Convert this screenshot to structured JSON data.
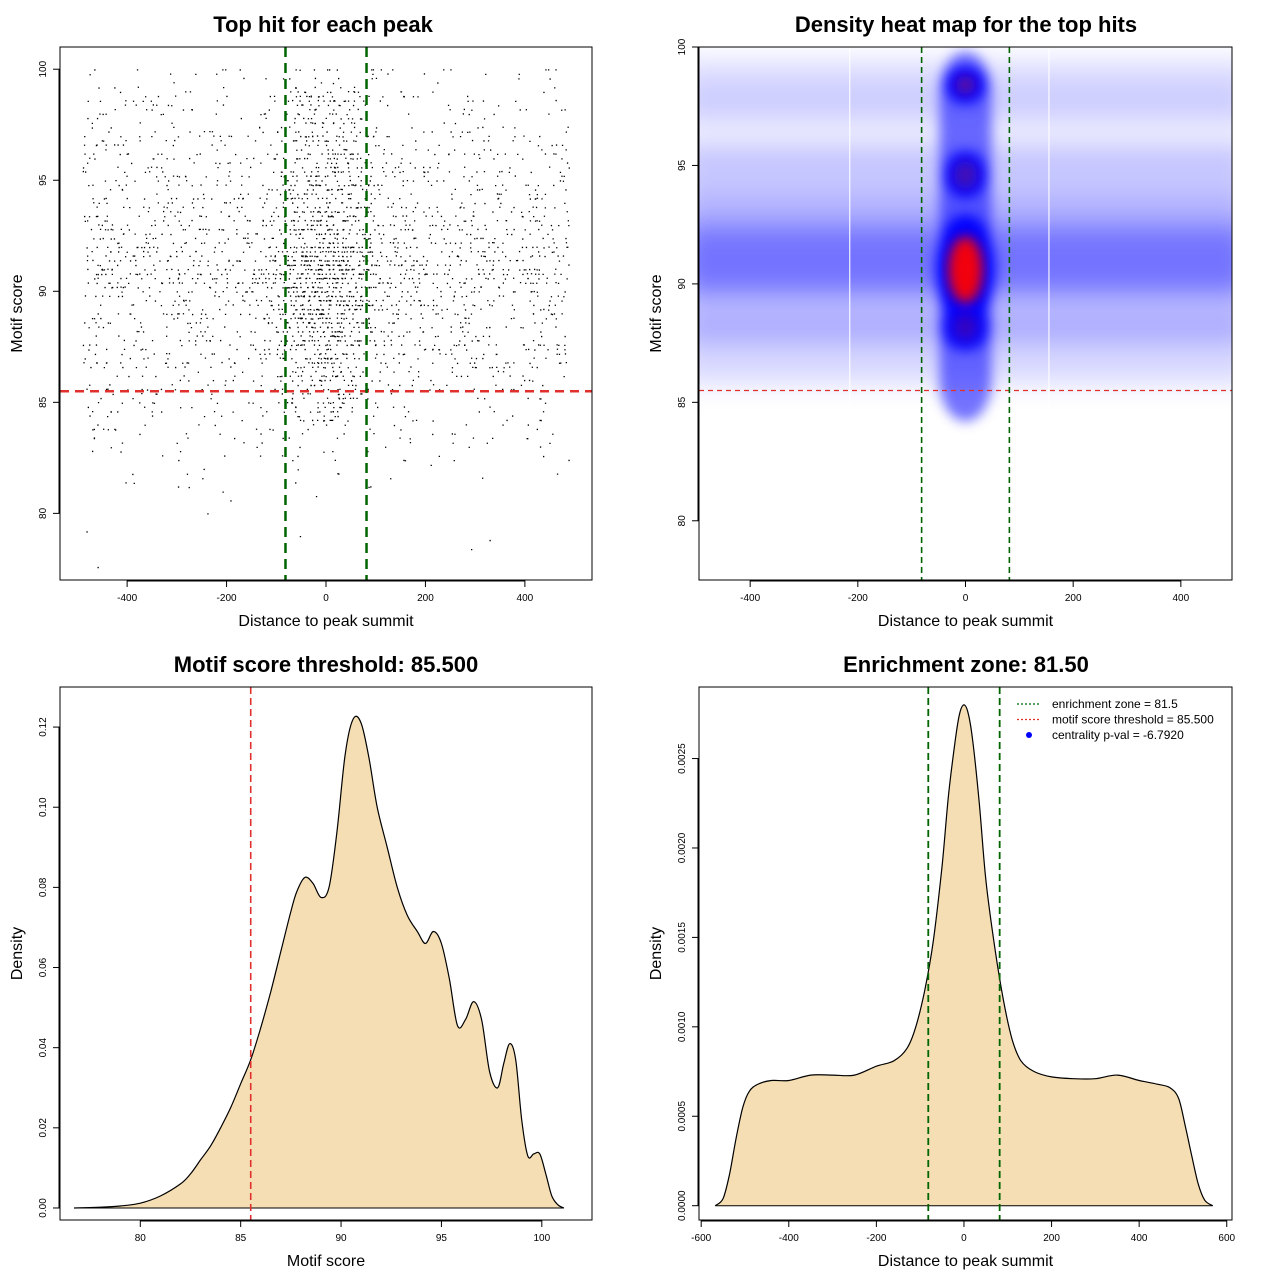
{
  "colors": {
    "threshold": "#e0302e",
    "zone": "#006400",
    "density_fill": "#f5deb3",
    "points": "#000000",
    "heat_low": "#ffffff",
    "heat_mid": "#0000ff",
    "heat_high": "#ff0000",
    "legend_point": "#0000ff"
  },
  "chart_data": [
    {
      "type": "scatter",
      "title": "Top hit for each peak",
      "xlabel": "Distance to peak summit",
      "ylabel": "Motif score",
      "xlim": [
        -535,
        535
      ],
      "ylim": [
        77,
        101
      ],
      "x_ticks": [
        -400,
        -200,
        0,
        200,
        400
      ],
      "y_ticks": [
        80,
        85,
        90,
        95,
        100
      ],
      "x_tick_labels": [
        "-400",
        "-200",
        "0",
        "200",
        "400"
      ],
      "y_tick_labels": [
        "80",
        "85",
        "90",
        "95",
        "100"
      ],
      "threshold_y": 85.5,
      "zone_x": [
        -81.5,
        81.5
      ],
      "points_x_range": [
        -490,
        490
      ],
      "points_y_range": [
        77.5,
        100
      ],
      "points_note": "thousands of top-hit points, dense for scores 86-100 and concentrated near distance 0"
    },
    {
      "type": "heatmap",
      "title": "Density heat map for the top hits",
      "xlabel": "Distance to peak summit",
      "ylabel": "Motif score",
      "xlim": [
        -495,
        495
      ],
      "ylim": [
        77.5,
        100
      ],
      "x_ticks": [
        -400,
        -200,
        0,
        200,
        400
      ],
      "y_ticks": [
        80,
        85,
        90,
        95,
        100
      ],
      "x_tick_labels": [
        "-400",
        "-200",
        "0",
        "200",
        "400"
      ],
      "y_tick_labels": [
        "80",
        "85",
        "90",
        "95",
        "100"
      ],
      "threshold_y": 85.5,
      "zone_x": [
        -81.5,
        81.5
      ],
      "hotspot": {
        "x": 0,
        "y": 90.6
      },
      "secondary_spots": [
        {
          "x": 0,
          "y": 98.4
        },
        {
          "x": 0,
          "y": 94.6
        },
        {
          "x": 0,
          "y": 88.2
        }
      ]
    },
    {
      "type": "area",
      "title": "Motif score threshold: 85.500",
      "xlabel": "Motif score",
      "ylabel": "Density",
      "xlim": [
        76,
        102.5
      ],
      "ylim": [
        -0.003,
        0.13
      ],
      "x_ticks": [
        80,
        85,
        90,
        95,
        100
      ],
      "y_ticks": [
        0.0,
        0.02,
        0.04,
        0.06,
        0.08,
        0.1,
        0.12
      ],
      "x_tick_labels": [
        "80",
        "85",
        "90",
        "95",
        "100"
      ],
      "y_tick_labels": [
        "0.00",
        "0.02",
        "0.04",
        "0.06",
        "0.08",
        "0.10",
        "0.12"
      ],
      "threshold_x": 85.5,
      "x": [
        76.7,
        78,
        79,
        80,
        81,
        82,
        82.5,
        83,
        83.5,
        84,
        84.5,
        85,
        85.5,
        86,
        86.5,
        87,
        87.5,
        87.8,
        88.2,
        88.6,
        89,
        89.4,
        89.8,
        90.2,
        90.6,
        91,
        91.4,
        91.8,
        92.3,
        92.8,
        93.3,
        93.8,
        94.2,
        94.6,
        95,
        95.4,
        95.8,
        96.2,
        96.6,
        97,
        97.4,
        97.8,
        98.1,
        98.4,
        98.7,
        99,
        99.3,
        99.6,
        99.9,
        100.2,
        100.5,
        100.8,
        101.1
      ],
      "y": [
        0.0,
        0.0002,
        0.0005,
        0.0012,
        0.003,
        0.006,
        0.0085,
        0.012,
        0.0155,
        0.02,
        0.025,
        0.031,
        0.037,
        0.045,
        0.054,
        0.064,
        0.074,
        0.079,
        0.0825,
        0.081,
        0.0775,
        0.08,
        0.094,
        0.113,
        0.122,
        0.121,
        0.112,
        0.1,
        0.09,
        0.08,
        0.073,
        0.069,
        0.066,
        0.069,
        0.066,
        0.057,
        0.0455,
        0.047,
        0.0515,
        0.047,
        0.034,
        0.03,
        0.036,
        0.041,
        0.037,
        0.022,
        0.013,
        0.0135,
        0.0135,
        0.0085,
        0.003,
        0.0008,
        0.0
      ]
    },
    {
      "type": "area",
      "title": "Enrichment zone: 81.50",
      "xlabel": "Distance to peak summit",
      "ylabel": "Density",
      "xlim": [
        -605,
        612
      ],
      "ylim": [
        -8e-05,
        0.0029
      ],
      "x_ticks": [
        -600,
        -400,
        -200,
        0,
        200,
        400,
        600
      ],
      "y_ticks": [
        0.0,
        0.0005,
        0.001,
        0.0015,
        0.002,
        0.0025
      ],
      "x_tick_labels": [
        "-600",
        "-400",
        "-200",
        "0",
        "200",
        "400",
        "600"
      ],
      "y_tick_labels": [
        "0.0000",
        "0.0005",
        "0.0010",
        "0.0015",
        "0.0020",
        "0.0025"
      ],
      "zone_x": [
        -81.5,
        81.5
      ],
      "x": [
        -568,
        -550,
        -535,
        -520,
        -505,
        -490,
        -470,
        -440,
        -400,
        -350,
        -300,
        -250,
        -200,
        -160,
        -130,
        -110,
        -90,
        -70,
        -50,
        -35,
        -20,
        -10,
        0,
        10,
        20,
        35,
        50,
        70,
        90,
        110,
        130,
        160,
        200,
        250,
        300,
        350,
        400,
        440,
        470,
        490,
        505,
        520,
        535,
        550,
        568
      ],
      "y": [
        0.0,
        4e-05,
        0.00018,
        0.00038,
        0.00055,
        0.00064,
        0.00068,
        0.0007,
        0.0007,
        0.00073,
        0.00073,
        0.00073,
        0.00078,
        0.00081,
        0.00088,
        0.001,
        0.0012,
        0.00148,
        0.0019,
        0.0023,
        0.0026,
        0.00275,
        0.0028,
        0.00275,
        0.0026,
        0.00225,
        0.00182,
        0.00145,
        0.00115,
        0.00093,
        0.00081,
        0.00075,
        0.00072,
        0.00071,
        0.00071,
        0.00073,
        0.0007,
        0.00068,
        0.00066,
        0.0006,
        0.00045,
        0.00028,
        0.00012,
        3e-05,
        0.0
      ],
      "legend": [
        {
          "label": "enrichment zone = 81.5",
          "style": "dotted",
          "color": "#006400"
        },
        {
          "label": "motif score threshold = 85.500",
          "style": "dotted",
          "color": "#e0302e"
        },
        {
          "label": "centrality p-val = -6.7920",
          "style": "point",
          "color": "#0000ff"
        }
      ]
    }
  ]
}
